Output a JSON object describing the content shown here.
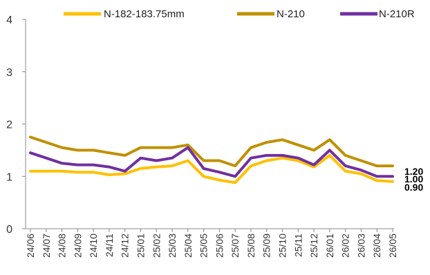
{
  "chart_data": {
    "type": "line",
    "title": "",
    "xlabel": "",
    "ylabel": "",
    "ylim": [
      0,
      4
    ],
    "yticks": [
      "0",
      "1",
      "2",
      "3",
      "4"
    ],
    "grid": false,
    "legend_position": "top",
    "categories": [
      "24/06",
      "24/07",
      "24/08",
      "24/09",
      "24/10",
      "24/11",
      "24/12",
      "25/01",
      "25/02",
      "25/03",
      "25/04",
      "25/05",
      "25/06",
      "25/07",
      "25/08",
      "25/09",
      "25/10",
      "25/11",
      "25/12",
      "26/01",
      "26/02",
      "26/03",
      "26/04",
      "26/05"
    ],
    "series": [
      {
        "name": "N-182-183.75mm",
        "color": "#FFC000",
        "end_label": "0.90",
        "values": [
          1.1,
          1.1,
          1.1,
          1.08,
          1.08,
          1.03,
          1.05,
          1.15,
          1.18,
          1.2,
          1.3,
          1.0,
          0.93,
          0.88,
          1.2,
          1.3,
          1.35,
          1.3,
          1.18,
          1.4,
          1.1,
          1.05,
          0.92,
          0.9
        ]
      },
      {
        "name": "N-210",
        "color": "#BF9000",
        "end_label": "1.20",
        "values": [
          1.75,
          1.65,
          1.55,
          1.5,
          1.5,
          1.45,
          1.4,
          1.55,
          1.55,
          1.55,
          1.6,
          1.3,
          1.3,
          1.2,
          1.55,
          1.65,
          1.7,
          1.6,
          1.5,
          1.7,
          1.4,
          1.3,
          1.2,
          1.2
        ]
      },
      {
        "name": "N-210R",
        "color": "#7030A0",
        "end_label": "1.00",
        "values": [
          1.45,
          1.35,
          1.25,
          1.22,
          1.22,
          1.18,
          1.1,
          1.35,
          1.3,
          1.35,
          1.55,
          1.15,
          1.08,
          1.0,
          1.35,
          1.4,
          1.4,
          1.35,
          1.22,
          1.5,
          1.2,
          1.12,
          1.0,
          1.0
        ]
      }
    ]
  }
}
